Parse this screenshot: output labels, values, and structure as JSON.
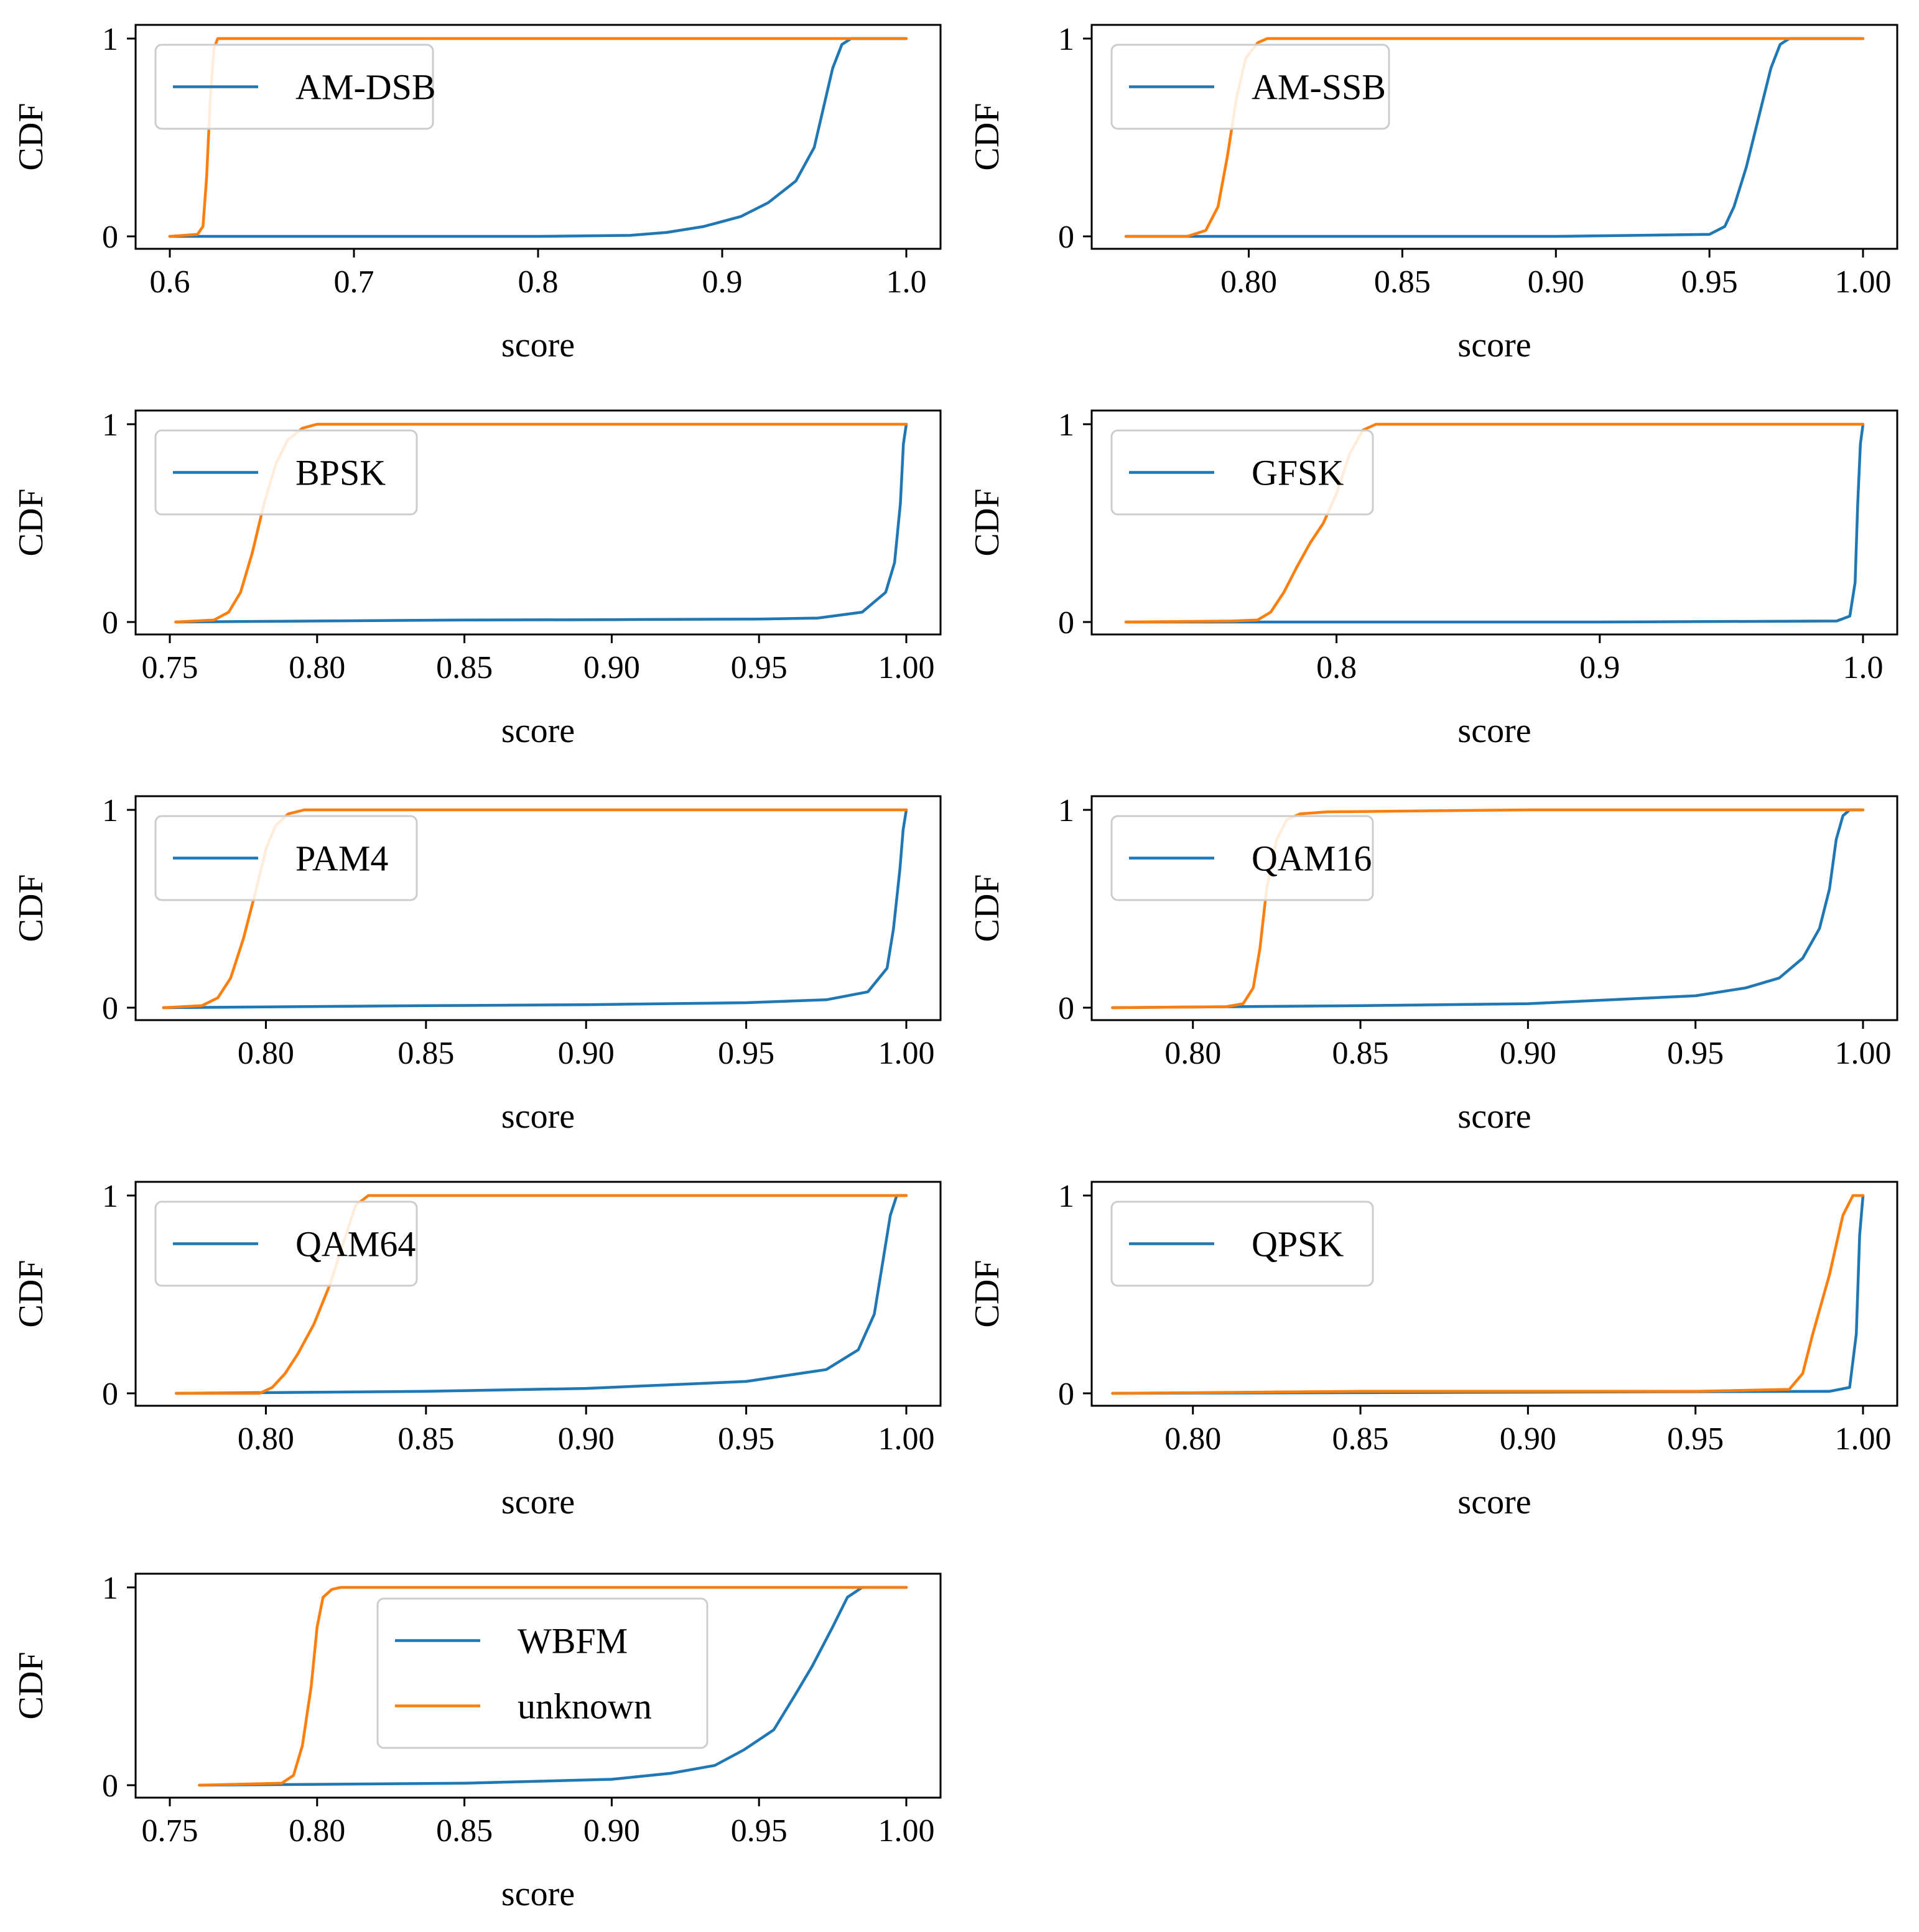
{
  "colors": {
    "blue": "#1f77b4",
    "orange": "#ff7f0e",
    "frame": "#000000",
    "legend_border": "#cccccc"
  },
  "chart_data": [
    {
      "type": "line",
      "xlabel": "score",
      "ylabel": "CDF",
      "xlim": [
        0.6,
        1.0
      ],
      "ylim": [
        0,
        1
      ],
      "xticks": [
        "0.6",
        "0.7",
        "0.8",
        "0.9",
        "1.0"
      ],
      "yticks": [
        "0",
        "1"
      ],
      "legend_placement": "top-left",
      "series": [
        {
          "name": "AM-DSB",
          "color": "blue",
          "x": [
            0.6,
            0.7,
            0.8,
            0.85,
            0.87,
            0.89,
            0.91,
            0.925,
            0.94,
            0.95,
            0.955,
            0.96,
            0.965,
            0.97,
            0.975,
            1.0
          ],
          "y": [
            0,
            0,
            0,
            0.005,
            0.02,
            0.05,
            0.1,
            0.17,
            0.28,
            0.45,
            0.65,
            0.85,
            0.97,
            1.0,
            1.0,
            1.0
          ]
        },
        {
          "name": "",
          "color": "orange",
          "x": [
            0.6,
            0.615,
            0.618,
            0.62,
            0.622,
            0.624,
            0.626,
            0.63,
            1.0
          ],
          "y": [
            0,
            0.01,
            0.05,
            0.3,
            0.7,
            0.95,
            1.0,
            1.0,
            1.0
          ]
        }
      ]
    },
    {
      "type": "line",
      "xlabel": "score",
      "ylabel": "CDF",
      "xlim": [
        0.76,
        1.0
      ],
      "ylim": [
        0,
        1
      ],
      "xticks": [
        "0.80",
        "0.85",
        "0.90",
        "0.95",
        "1.00"
      ],
      "yticks": [
        "0",
        "1"
      ],
      "legend_placement": "top-left",
      "series": [
        {
          "name": "AM-SSB",
          "color": "blue",
          "x": [
            0.76,
            0.9,
            0.95,
            0.955,
            0.958,
            0.962,
            0.966,
            0.97,
            0.973,
            0.976,
            1.0
          ],
          "y": [
            0,
            0,
            0.01,
            0.05,
            0.15,
            0.35,
            0.6,
            0.85,
            0.97,
            1.0,
            1.0
          ]
        },
        {
          "name": "",
          "color": "orange",
          "x": [
            0.76,
            0.78,
            0.786,
            0.79,
            0.793,
            0.796,
            0.799,
            0.803,
            0.806,
            0.81,
            0.9,
            1.0
          ],
          "y": [
            0,
            0,
            0.03,
            0.15,
            0.4,
            0.7,
            0.9,
            0.98,
            1.0,
            1.0,
            1.0,
            1.0
          ]
        }
      ]
    },
    {
      "type": "line",
      "xlabel": "score",
      "ylabel": "CDF",
      "xlim": [
        0.75,
        1.0
      ],
      "ylim": [
        0,
        1
      ],
      "xticks": [
        "0.75",
        "0.80",
        "0.85",
        "0.90",
        "0.95",
        "1.00"
      ],
      "yticks": [
        "0",
        "1"
      ],
      "legend_placement": "top-left",
      "series": [
        {
          "name": "BPSK",
          "color": "blue",
          "x": [
            0.752,
            0.8,
            0.85,
            0.9,
            0.95,
            0.97,
            0.985,
            0.993,
            0.996,
            0.998,
            0.999,
            1.0
          ],
          "y": [
            0,
            0.005,
            0.01,
            0.012,
            0.015,
            0.02,
            0.05,
            0.15,
            0.3,
            0.6,
            0.9,
            1.0
          ]
        },
        {
          "name": "",
          "color": "orange",
          "x": [
            0.752,
            0.765,
            0.77,
            0.774,
            0.778,
            0.782,
            0.786,
            0.79,
            0.795,
            0.8,
            0.85,
            1.0
          ],
          "y": [
            0,
            0.01,
            0.05,
            0.15,
            0.35,
            0.6,
            0.8,
            0.92,
            0.98,
            1.0,
            1.0,
            1.0
          ]
        }
      ]
    },
    {
      "type": "line",
      "xlabel": "score",
      "ylabel": "CDF",
      "xlim": [
        0.72,
        1.0
      ],
      "ylim": [
        0,
        1
      ],
      "xticks": [
        "0.8",
        "0.9",
        "1.0"
      ],
      "yticks": [
        "0",
        "1"
      ],
      "legend_placement": "top-left",
      "series": [
        {
          "name": "GFSK",
          "color": "blue",
          "x": [
            0.72,
            0.9,
            0.99,
            0.995,
            0.997,
            0.998,
            0.999,
            1.0
          ],
          "y": [
            0,
            0,
            0.005,
            0.03,
            0.2,
            0.6,
            0.9,
            1.0
          ]
        },
        {
          "name": "",
          "color": "orange",
          "x": [
            0.72,
            0.76,
            0.77,
            0.775,
            0.78,
            0.785,
            0.79,
            0.795,
            0.8,
            0.805,
            0.81,
            0.815,
            0.9,
            1.0
          ],
          "y": [
            0,
            0.005,
            0.01,
            0.05,
            0.15,
            0.28,
            0.4,
            0.5,
            0.65,
            0.85,
            0.97,
            1.0,
            1.0,
            1.0
          ]
        }
      ]
    },
    {
      "type": "line",
      "xlabel": "score",
      "ylabel": "CDF",
      "xlim": [
        0.77,
        1.0
      ],
      "ylim": [
        0,
        1
      ],
      "xticks": [
        "0.80",
        "0.85",
        "0.90",
        "0.95",
        "1.00"
      ],
      "yticks": [
        "0",
        "1"
      ],
      "legend_placement": "top-left",
      "series": [
        {
          "name": "PAM4",
          "color": "blue",
          "x": [
            0.768,
            0.85,
            0.9,
            0.95,
            0.975,
            0.988,
            0.994,
            0.996,
            0.998,
            0.999,
            1.0
          ],
          "y": [
            0,
            0.01,
            0.015,
            0.025,
            0.04,
            0.08,
            0.2,
            0.4,
            0.7,
            0.9,
            1.0
          ]
        },
        {
          "name": "",
          "color": "orange",
          "x": [
            0.768,
            0.78,
            0.785,
            0.789,
            0.793,
            0.797,
            0.8,
            0.803,
            0.807,
            0.812,
            0.85,
            1.0
          ],
          "y": [
            0,
            0.01,
            0.05,
            0.15,
            0.35,
            0.6,
            0.8,
            0.92,
            0.98,
            1.0,
            1.0,
            1.0
          ]
        }
      ]
    },
    {
      "type": "line",
      "xlabel": "score",
      "ylabel": "CDF",
      "xlim": [
        0.78,
        1.0
      ],
      "ylim": [
        0,
        1
      ],
      "xticks": [
        "0.80",
        "0.85",
        "0.90",
        "0.95",
        "1.00"
      ],
      "yticks": [
        "0",
        "1"
      ],
      "legend_placement": "top-left",
      "series": [
        {
          "name": "QAM16",
          "color": "blue",
          "x": [
            0.776,
            0.85,
            0.9,
            0.95,
            0.965,
            0.975,
            0.982,
            0.987,
            0.99,
            0.992,
            0.994,
            0.996,
            1.0
          ],
          "y": [
            0,
            0.01,
            0.02,
            0.06,
            0.1,
            0.15,
            0.25,
            0.4,
            0.6,
            0.85,
            0.97,
            1.0,
            1.0
          ]
        },
        {
          "name": "",
          "color": "orange",
          "x": [
            0.776,
            0.81,
            0.815,
            0.818,
            0.82,
            0.822,
            0.825,
            0.828,
            0.832,
            0.84,
            0.9,
            1.0
          ],
          "y": [
            0,
            0.005,
            0.02,
            0.1,
            0.3,
            0.6,
            0.85,
            0.95,
            0.98,
            0.99,
            1.0,
            1.0
          ]
        }
      ]
    },
    {
      "type": "line",
      "xlabel": "score",
      "ylabel": "CDF",
      "xlim": [
        0.77,
        1.0
      ],
      "ylim": [
        0,
        1
      ],
      "xticks": [
        "0.80",
        "0.85",
        "0.90",
        "0.95",
        "1.00"
      ],
      "yticks": [
        "0",
        "1"
      ],
      "legend_placement": "top-left",
      "series": [
        {
          "name": "QAM64",
          "color": "blue",
          "x": [
            0.772,
            0.85,
            0.9,
            0.95,
            0.975,
            0.985,
            0.99,
            0.993,
            0.995,
            0.997,
            1.0
          ],
          "y": [
            0,
            0.01,
            0.025,
            0.06,
            0.12,
            0.22,
            0.4,
            0.7,
            0.9,
            1.0,
            1.0
          ]
        },
        {
          "name": "",
          "color": "orange",
          "x": [
            0.772,
            0.798,
            0.802,
            0.806,
            0.81,
            0.815,
            0.82,
            0.825,
            0.828,
            0.832,
            0.85,
            1.0
          ],
          "y": [
            0,
            0,
            0.03,
            0.1,
            0.2,
            0.35,
            0.55,
            0.8,
            0.95,
            1.0,
            1.0,
            1.0
          ]
        }
      ]
    },
    {
      "type": "line",
      "xlabel": "score",
      "ylabel": "CDF",
      "xlim": [
        0.78,
        1.0
      ],
      "ylim": [
        0,
        1
      ],
      "xticks": [
        "0.80",
        "0.85",
        "0.90",
        "0.95",
        "1.00"
      ],
      "yticks": [
        "0",
        "1"
      ],
      "legend_placement": "top-left",
      "series": [
        {
          "name": "QPSK",
          "color": "blue",
          "x": [
            0.776,
            0.99,
            0.996,
            0.998,
            0.999,
            1.0
          ],
          "y": [
            0,
            0.01,
            0.03,
            0.3,
            0.8,
            1.0
          ]
        },
        {
          "name": "",
          "color": "orange",
          "x": [
            0.776,
            0.85,
            0.95,
            0.978,
            0.982,
            0.985,
            0.99,
            0.994,
            0.997,
            1.0
          ],
          "y": [
            0,
            0.01,
            0.01,
            0.02,
            0.1,
            0.3,
            0.6,
            0.9,
            1.0,
            1.0
          ]
        }
      ]
    },
    {
      "type": "line",
      "xlabel": "score",
      "ylabel": "CDF",
      "xlim": [
        0.75,
        1.0
      ],
      "ylim": [
        0,
        1
      ],
      "xticks": [
        "0.75",
        "0.80",
        "0.85",
        "0.90",
        "0.95",
        "1.00"
      ],
      "yticks": [
        "0",
        "1"
      ],
      "legend_placement": "top-center",
      "series": [
        {
          "name": "WBFM",
          "color": "blue",
          "x": [
            0.76,
            0.85,
            0.9,
            0.92,
            0.935,
            0.945,
            0.955,
            0.962,
            0.968,
            0.975,
            0.98,
            0.985,
            1.0
          ],
          "y": [
            0,
            0.01,
            0.03,
            0.06,
            0.1,
            0.18,
            0.28,
            0.45,
            0.6,
            0.8,
            0.95,
            1.0,
            1.0
          ]
        },
        {
          "name": "unknown",
          "color": "orange",
          "x": [
            0.76,
            0.788,
            0.792,
            0.795,
            0.798,
            0.8,
            0.802,
            0.805,
            0.808,
            0.85,
            1.0
          ],
          "y": [
            0,
            0.01,
            0.05,
            0.2,
            0.5,
            0.8,
            0.95,
            0.99,
            1.0,
            1.0,
            1.0
          ]
        }
      ]
    }
  ]
}
